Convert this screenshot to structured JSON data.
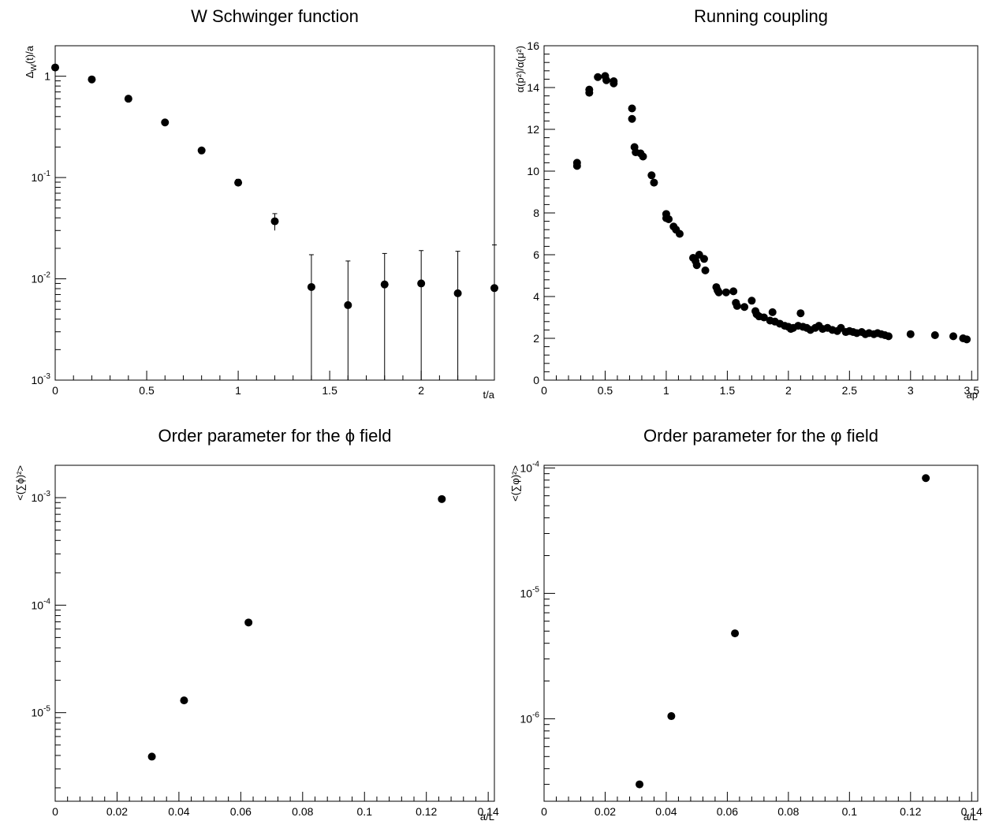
{
  "chart_data": [
    {
      "type": "scatter",
      "title": "W Schwinger function",
      "xlabel": "t/a",
      "ylabel": "Δ_W(t)/a",
      "ylabel_main": "Δ",
      "ylabel_sub": "W",
      "ylabel_tail": "(t)/a",
      "log_y": true,
      "xlim": [
        0,
        2.4
      ],
      "ylim": [
        0.001,
        2
      ],
      "x_ticks": [
        0,
        0.5,
        1,
        1.5,
        2
      ],
      "x_tick_labels": [
        "0",
        "0.5",
        "1",
        "1.5",
        "2"
      ],
      "y_ticks": [
        0.001,
        0.01,
        0.1,
        1
      ],
      "y_tick_labels": [
        {
          "base": "10",
          "exp": "-3"
        },
        {
          "base": "10",
          "exp": "-2"
        },
        {
          "base": "10",
          "exp": "-1"
        },
        {
          "base": "1",
          "exp": ""
        }
      ],
      "x": [
        0,
        0.2,
        0.4,
        0.6,
        0.8,
        1.0,
        1.2,
        1.4,
        1.6,
        1.8,
        2.0,
        2.2,
        2.4
      ],
      "y": [
        1.22,
        0.93,
        0.6,
        0.35,
        0.185,
        0.089,
        0.037,
        0.0083,
        0.0055,
        0.0088,
        0.009,
        0.0072,
        0.0081
      ],
      "y_err_low": [
        0.03,
        0.02,
        0.01,
        0.008,
        0.005,
        0.007,
        0.007,
        0.0083,
        0.0055,
        0.0088,
        0.009,
        0.0072,
        0.0081
      ],
      "y_err_high": [
        0.03,
        0.02,
        0.01,
        0.008,
        0.005,
        0.007,
        0.007,
        0.009,
        0.0095,
        0.009,
        0.01,
        0.0115,
        0.0135
      ]
    },
    {
      "type": "scatter",
      "title": "Running coupling",
      "xlabel": "ap",
      "ylabel": "α(p²)/α(μ²)",
      "log_y": false,
      "xlim": [
        0,
        3.55
      ],
      "ylim": [
        0,
        16
      ],
      "x_ticks": [
        0,
        0.5,
        1,
        1.5,
        2,
        2.5,
        3,
        3.5
      ],
      "x_tick_labels": [
        "0",
        "0.5",
        "1",
        "1.5",
        "2",
        "2.5",
        "3",
        "3.5"
      ],
      "y_ticks": [
        0,
        2,
        4,
        6,
        8,
        10,
        12,
        14,
        16
      ],
      "y_tick_labels": [
        "0",
        "2",
        "4",
        "6",
        "8",
        "10",
        "12",
        "14",
        "16"
      ],
      "x": [
        0.27,
        0.27,
        0.37,
        0.37,
        0.44,
        0.5,
        0.51,
        0.57,
        0.57,
        0.72,
        0.72,
        0.74,
        0.75,
        0.79,
        0.81,
        0.88,
        0.9,
        1.0,
        1.0,
        1.02,
        1.06,
        1.08,
        1.11,
        1.22,
        1.24,
        1.25,
        1.27,
        1.31,
        1.32,
        1.41,
        1.42,
        1.43,
        1.49,
        1.55,
        1.57,
        1.58,
        1.64,
        1.7,
        1.73,
        1.74,
        1.76,
        1.8,
        1.85,
        1.87,
        1.89,
        1.93,
        1.97,
        2.0,
        2.02,
        2.04,
        2.08,
        2.1,
        2.12,
        2.15,
        2.18,
        2.22,
        2.25,
        2.28,
        2.32,
        2.36,
        2.4,
        2.43,
        2.47,
        2.5,
        2.53,
        2.56,
        2.6,
        2.63,
        2.66,
        2.7,
        2.73,
        2.76,
        2.79,
        2.82,
        3.0,
        3.2,
        3.35,
        3.43,
        3.46
      ],
      "y": [
        10.4,
        10.25,
        13.9,
        13.75,
        14.5,
        14.55,
        14.35,
        14.3,
        14.2,
        13.0,
        12.5,
        11.15,
        10.9,
        10.85,
        10.7,
        9.8,
        9.45,
        7.95,
        7.75,
        7.7,
        7.35,
        7.2,
        7.0,
        5.85,
        5.7,
        5.5,
        6.0,
        5.8,
        5.25,
        4.45,
        4.3,
        4.2,
        4.2,
        4.25,
        3.7,
        3.55,
        3.5,
        3.8,
        3.3,
        3.15,
        3.05,
        3.0,
        2.85,
        3.25,
        2.8,
        2.7,
        2.6,
        2.55,
        2.45,
        2.5,
        2.6,
        3.2,
        2.55,
        2.5,
        2.4,
        2.5,
        2.6,
        2.45,
        2.5,
        2.4,
        2.35,
        2.5,
        2.3,
        2.35,
        2.3,
        2.25,
        2.3,
        2.2,
        2.25,
        2.2,
        2.25,
        2.2,
        2.15,
        2.1,
        2.2,
        2.15,
        2.1,
        2.0,
        1.95
      ]
    },
    {
      "type": "scatter",
      "title": "Order parameter for the ϕ field",
      "xlabel": "a/L",
      "ylabel": "<(∑ϕ)²>",
      "log_y": true,
      "xlim": [
        0,
        0.142
      ],
      "ylim": [
        1.5e-06,
        0.002
      ],
      "x_ticks": [
        0,
        0.02,
        0.04,
        0.06,
        0.08,
        0.1,
        0.12,
        0.14
      ],
      "x_tick_labels": [
        "0",
        "0.02",
        "0.04",
        "0.06",
        "0.08",
        "0.1",
        "0.12",
        "0.14"
      ],
      "y_ticks": [
        1e-05,
        0.0001,
        0.001
      ],
      "y_tick_labels": [
        {
          "base": "10",
          "exp": "-5"
        },
        {
          "base": "10",
          "exp": "-4"
        },
        {
          "base": "10",
          "exp": "-3"
        }
      ],
      "x": [
        0.03125,
        0.041667,
        0.0625,
        0.125
      ],
      "y": [
        3.9e-06,
        1.3e-05,
        6.9e-05,
        0.00097
      ]
    },
    {
      "type": "scatter",
      "title": "Order parameter for the φ field",
      "xlabel": "a/L",
      "ylabel": "<(∑φ)²>",
      "log_y": true,
      "xlim": [
        0,
        0.142
      ],
      "ylim": [
        2.2e-07,
        0.000105
      ],
      "x_ticks": [
        0,
        0.02,
        0.04,
        0.06,
        0.08,
        0.1,
        0.12,
        0.14
      ],
      "x_tick_labels": [
        "0",
        "0.02",
        "0.04",
        "0.06",
        "0.08",
        "0.1",
        "0.12",
        "0.14"
      ],
      "y_ticks": [
        1e-06,
        1e-05,
        0.0001
      ],
      "y_tick_labels": [
        {
          "base": "10",
          "exp": "-6"
        },
        {
          "base": "10",
          "exp": "-5"
        },
        {
          "base": "10",
          "exp": "-4"
        }
      ],
      "x": [
        0.03125,
        0.041667,
        0.0625,
        0.125
      ],
      "y": [
        3e-07,
        1.05e-06,
        4.8e-06,
        8.3e-05
      ]
    }
  ]
}
